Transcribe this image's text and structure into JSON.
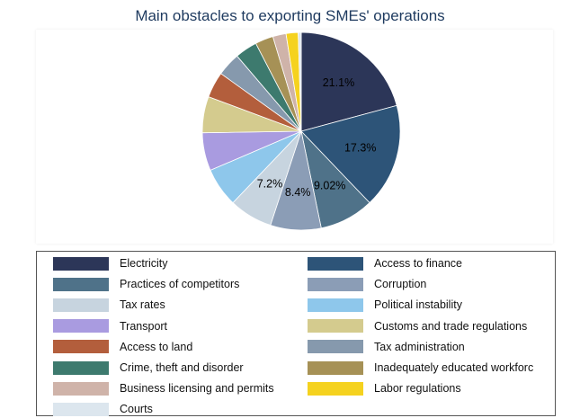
{
  "chart_data": {
    "type": "pie",
    "title": "Main obstacles to exporting SMEs' operations",
    "slices": [
      {
        "name": "Electricity",
        "value": 21.1,
        "label": "21.1%",
        "color": "#2c3658"
      },
      {
        "name": "Access to finance",
        "value": 17.3,
        "label": "17.3%",
        "color": "#2d5478"
      },
      {
        "name": "Practices of competitors",
        "value": 9.02,
        "label": "9.02%",
        "color": "#4f7289"
      },
      {
        "name": "Corruption",
        "value": 8.4,
        "label": "8.4%",
        "color": "#8b9db6"
      },
      {
        "name": "Tax rates",
        "value": 7.2,
        "label": "7.2%",
        "color": "#c7d4df"
      },
      {
        "name": "Political instability",
        "value": 6.5,
        "label": "",
        "color": "#8ec7eb"
      },
      {
        "name": "Transport",
        "value": 6.3,
        "label": "",
        "color": "#a99be0"
      },
      {
        "name": "Customs and trade regulations",
        "value": 6.0,
        "label": "",
        "color": "#d4cb8e"
      },
      {
        "name": "Access to land",
        "value": 4.3,
        "label": "",
        "color": "#b35e3c"
      },
      {
        "name": "Tax administration",
        "value": 3.9,
        "label": "",
        "color": "#8699ad"
      },
      {
        "name": "Crime, theft and disorder",
        "value": 3.7,
        "label": "",
        "color": "#3d7a6e"
      },
      {
        "name": "Inadequately educated workforc",
        "value": 3.0,
        "label": "",
        "color": "#a69156"
      },
      {
        "name": "Business licensing and permits",
        "value": 2.2,
        "label": "",
        "color": "#cfb3a9"
      },
      {
        "name": "Labor regulations",
        "value": 2.0,
        "label": "",
        "color": "#f5d21f"
      },
      {
        "name": "Courts",
        "value": 0.5,
        "label": "",
        "color": "#dce6ee"
      }
    ],
    "legend_position": "bottom",
    "legend_columns": 2
  }
}
